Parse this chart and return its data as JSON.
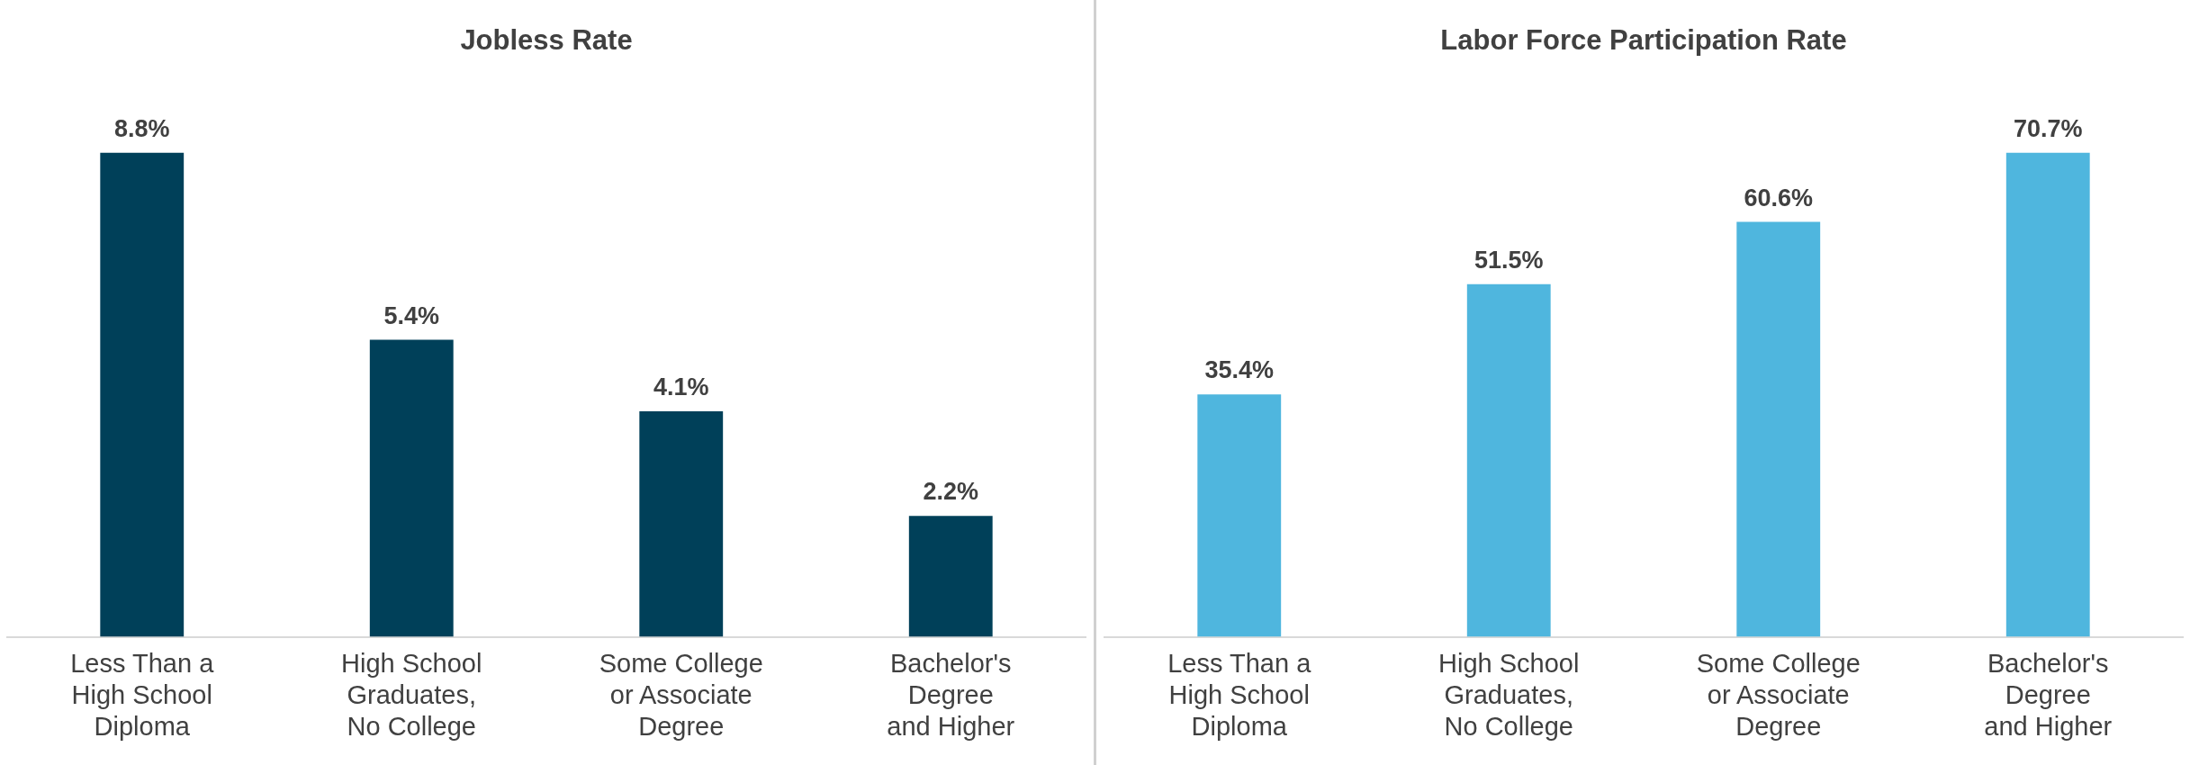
{
  "chart_data": [
    {
      "type": "bar",
      "title": "Jobless Rate",
      "categories": [
        "Less Than a\nHigh School\nDiploma",
        "High School\nGraduates,\nNo College",
        "Some College\nor Associate\nDegree",
        "Bachelor's\nDegree\nand Higher"
      ],
      "values": [
        8.8,
        5.4,
        4.1,
        2.2
      ],
      "color": "#004059",
      "value_labels": [
        "8.8%",
        "5.4%",
        "4.1%",
        "2.2%"
      ],
      "tick_labels": "x"
    },
    {
      "type": "bar",
      "title": "Labor Force Participation Rate",
      "categories": [
        "Less Than a\nHigh School\nDiploma",
        "High School\nGraduates,\nNo College",
        "Some College\nor Associate\nDegree",
        "Bachelor's\nDegree\nand Higher"
      ],
      "values": [
        35.4,
        51.5,
        60.6,
        70.7
      ],
      "color": "#4fb6de",
      "value_labels": [
        "35.4%",
        "51.5%",
        "60.6%",
        "70.7%"
      ],
      "tick_labels": "x"
    }
  ]
}
